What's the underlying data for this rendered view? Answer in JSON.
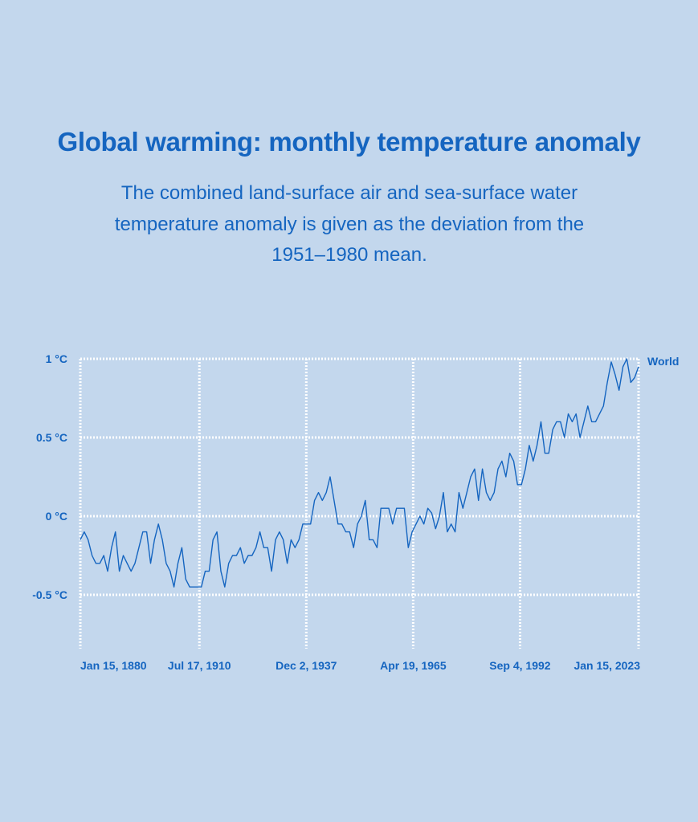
{
  "title": "Global warming: monthly temperature anomaly",
  "subtitle": "The combined land-surface air and sea-surface water temperature anomaly is given as the deviation from the 1951–1980 mean.",
  "chart_data": {
    "type": "line",
    "title": "Global warming: monthly temperature anomaly",
    "xlabel": "",
    "ylabel": "",
    "xlim": [
      1880.04,
      2023.04
    ],
    "ylim": [
      -0.85,
      1.4
    ],
    "grid": true,
    "line_color": "#1565c0",
    "grid_color": "#ffffff",
    "y_ticks": [
      {
        "value": 1,
        "label": "1 °C"
      },
      {
        "value": 0.5,
        "label": "0.5 °C"
      },
      {
        "value": 0,
        "label": "0 °C"
      },
      {
        "value": -0.5,
        "label": "-0.5 °C"
      }
    ],
    "x_ticks": [
      {
        "value": 1880.04,
        "label": "Jan 15, 1880"
      },
      {
        "value": 1910.54,
        "label": "Jul 17, 1910"
      },
      {
        "value": 1937.92,
        "label": "Dec 2, 1937"
      },
      {
        "value": 1965.3,
        "label": "Apr 19, 1965"
      },
      {
        "value": 1992.68,
        "label": "Sep 4, 1992"
      },
      {
        "value": 2023.04,
        "label": "Jan 15, 2023"
      }
    ],
    "series": [
      {
        "name": "World",
        "x_start": 1880,
        "x_step": 1,
        "values": [
          -0.15,
          -0.1,
          -0.15,
          -0.25,
          -0.3,
          -0.3,
          -0.25,
          -0.35,
          -0.2,
          -0.1,
          -0.35,
          -0.25,
          -0.3,
          -0.35,
          -0.3,
          -0.2,
          -0.1,
          -0.1,
          -0.3,
          -0.15,
          -0.05,
          -0.15,
          -0.3,
          -0.35,
          -0.45,
          -0.3,
          -0.2,
          -0.4,
          -0.45,
          -0.45,
          -0.45,
          -0.45,
          -0.35,
          -0.35,
          -0.15,
          -0.1,
          -0.35,
          -0.45,
          -0.3,
          -0.25,
          -0.25,
          -0.2,
          -0.3,
          -0.25,
          -0.25,
          -0.2,
          -0.1,
          -0.2,
          -0.2,
          -0.35,
          -0.15,
          -0.1,
          -0.15,
          -0.3,
          -0.15,
          -0.2,
          -0.15,
          -0.05,
          -0.05,
          -0.05,
          0.1,
          0.15,
          0.1,
          0.15,
          0.25,
          0.1,
          -0.05,
          -0.05,
          -0.1,
          -0.1,
          -0.2,
          -0.05,
          0.0,
          0.1,
          -0.15,
          -0.15,
          -0.2,
          0.05,
          0.05,
          0.05,
          -0.05,
          0.05,
          0.05,
          0.05,
          -0.2,
          -0.1,
          -0.05,
          0.0,
          -0.05,
          0.05,
          0.02,
          -0.08,
          0.0,
          0.15,
          -0.1,
          -0.05,
          -0.1,
          0.15,
          0.05,
          0.15,
          0.25,
          0.3,
          0.1,
          0.3,
          0.15,
          0.1,
          0.15,
          0.3,
          0.35,
          0.25,
          0.4,
          0.35,
          0.2,
          0.2,
          0.3,
          0.45,
          0.35,
          0.45,
          0.6,
          0.4,
          0.4,
          0.55,
          0.6,
          0.6,
          0.5,
          0.65,
          0.6,
          0.65,
          0.5,
          0.6,
          0.7,
          0.6,
          0.6,
          0.65,
          0.7,
          0.85,
          0.98,
          0.9,
          0.8,
          0.95,
          1.0,
          0.85,
          0.88,
          0.95
        ]
      }
    ]
  }
}
